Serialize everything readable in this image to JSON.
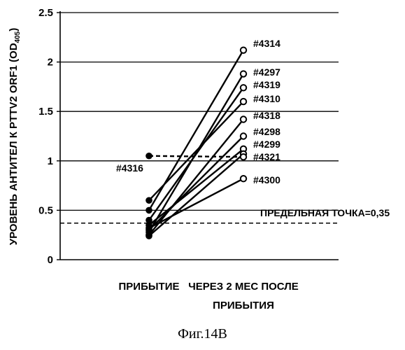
{
  "chart_data": {
    "type": "line",
    "ylabel": "УРОВЕНЬ АНТИТЕЛ К PTTV2 ORF1 (OD",
    "ylabel_sub": "405",
    "ylabel_close": ")",
    "ylim": [
      0,
      2.5
    ],
    "yticks": [
      "0",
      "0.5",
      "1",
      "1.5",
      "2",
      "2.5"
    ],
    "ytick_values": [
      0,
      0.5,
      1,
      1.5,
      2,
      2.5
    ],
    "grid": "horizontal",
    "categories": [
      {
        "lines": [
          "ПРИБЫТИЕ"
        ]
      },
      {
        "lines": [
          "ЧЕРЕЗ 2 МЕС ПОСЛЕ",
          "ПРИБЫТИЯ"
        ]
      }
    ],
    "series": [
      {
        "name": "#4314",
        "values": [
          0.5,
          2.12
        ]
      },
      {
        "name": "#4297",
        "values": [
          0.28,
          1.88
        ]
      },
      {
        "name": "#4319",
        "values": [
          0.4,
          1.74
        ]
      },
      {
        "name": "#4310",
        "values": [
          0.6,
          1.6
        ]
      },
      {
        "name": "#4318",
        "values": [
          0.25,
          1.42
        ]
      },
      {
        "name": "#4298",
        "values": [
          0.3,
          1.25
        ]
      },
      {
        "name": "#4299",
        "values": [
          0.35,
          1.12
        ]
      },
      {
        "name": "#4321",
        "values": [
          0.24,
          1.07
        ]
      },
      {
        "name": "#4300",
        "values": [
          0.32,
          0.82
        ]
      },
      {
        "name": "#4316",
        "values": [
          1.05,
          1.04
        ],
        "style": "dashed"
      }
    ],
    "threshold": {
      "value": 0.37,
      "label": "ПРЕДЕЛЬНАЯ ТОЧКА=0,35"
    }
  },
  "caption": "Фиг.14B"
}
